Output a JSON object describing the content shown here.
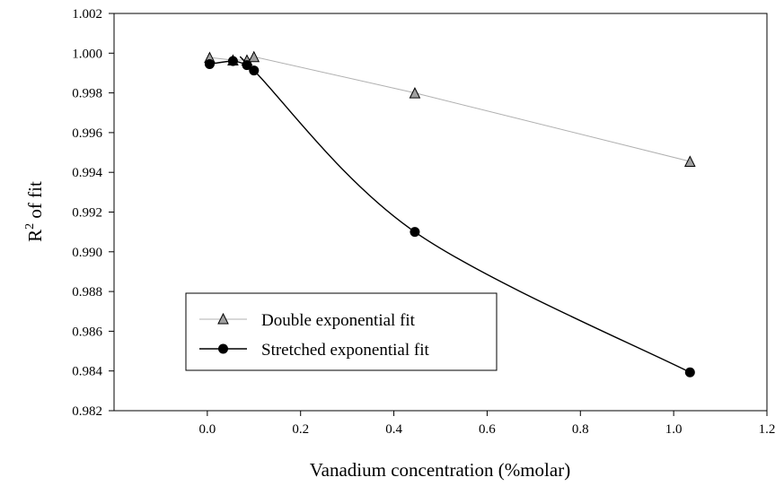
{
  "chart_data": {
    "type": "line",
    "xlabel": "Vanadium concentration (%molar)",
    "ylabel": {
      "base": "R",
      "sup": "2",
      "rest": " of fit"
    },
    "xlim": [
      -0.2,
      1.2
    ],
    "ylim": [
      0.982,
      1.002
    ],
    "x_ticks": [
      0.0,
      0.2,
      0.4,
      0.6,
      0.8,
      1.0,
      1.2
    ],
    "x_tick_labels": [
      "0.0",
      "0.2",
      "0.4",
      "0.6",
      "0.8",
      "1.0",
      "1.2"
    ],
    "y_ticks": [
      0.982,
      0.984,
      0.986,
      0.988,
      0.99,
      0.992,
      0.994,
      0.996,
      0.998,
      1.0,
      1.002
    ],
    "y_tick_labels": [
      "0.982",
      "0.984",
      "0.986",
      "0.988",
      "0.990",
      "0.992",
      "0.994",
      "0.996",
      "0.998",
      "1.000",
      "1.002"
    ],
    "grid": false,
    "legend_position": "lower-left",
    "series": [
      {
        "name": "Double exponential fit",
        "marker": "triangle",
        "line_color": "#b0b0b0",
        "marker_fill": "#a0a0a0",
        "smooth": false,
        "x": [
          0.005,
          0.055,
          0.085,
          0.1,
          0.445,
          1.035
        ],
        "y": [
          0.99978,
          0.99965,
          0.99965,
          0.99982,
          0.998,
          0.99455
        ]
      },
      {
        "name": "Stretched exponential fit",
        "marker": "circle",
        "line_color": "#000000",
        "marker_fill": "#000000",
        "smooth": true,
        "x": [
          0.005,
          0.055,
          0.085,
          0.1,
          0.445,
          1.035
        ],
        "y": [
          0.99945,
          0.9996,
          0.9994,
          0.99913,
          0.991,
          0.98393
        ]
      }
    ]
  }
}
